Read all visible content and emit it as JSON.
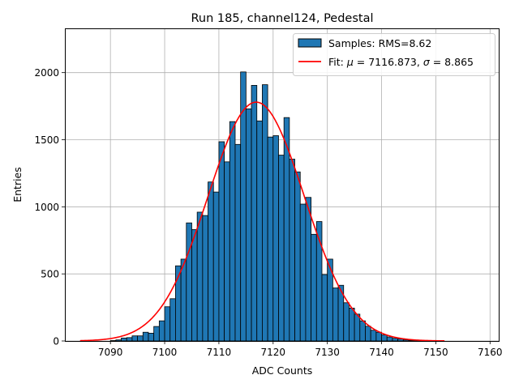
{
  "chart_data": {
    "type": "bar",
    "title": "Run 185, channel124, Pedestal",
    "xlabel": "ADC Counts",
    "ylabel": "Entries",
    "xlim": [
      7081.6,
      7161.6
    ],
    "ylim": [
      0,
      2330
    ],
    "xticks": [
      7090,
      7100,
      7110,
      7120,
      7130,
      7140,
      7150,
      7160
    ],
    "yticks": [
      0,
      500,
      1000,
      1500,
      2000
    ],
    "grid": true,
    "legend_position": "top-right",
    "bin_width": 1,
    "bins_start": 7090,
    "histogram": {
      "name": "Samples: RMS=8.62",
      "color": "#1f77b4",
      "values": [
        3,
        8,
        22,
        25,
        38,
        38,
        65,
        58,
        108,
        150,
        255,
        315,
        560,
        610,
        880,
        830,
        960,
        935,
        1185,
        1110,
        1485,
        1335,
        1635,
        1465,
        2005,
        1730,
        1905,
        1640,
        1910,
        1520,
        1530,
        1385,
        1665,
        1355,
        1260,
        1020,
        1070,
        795,
        890,
        495,
        610,
        395,
        415,
        285,
        245,
        200,
        150,
        110,
        80,
        65,
        45,
        30,
        20,
        15,
        8,
        5,
        3,
        2,
        1,
        1,
        1
      ]
    },
    "fit": {
      "name": "Fit:",
      "mu_symbol": "μ",
      "mu_text": " = 7116.873, ",
      "sigma_symbol": "σ",
      "sigma_text": " = 8.865",
      "mu": 7116.873,
      "sigma": 8.865,
      "amplitude": 1780,
      "x_range": [
        7084.4,
        7151.6
      ],
      "color": "#ff0000"
    }
  }
}
